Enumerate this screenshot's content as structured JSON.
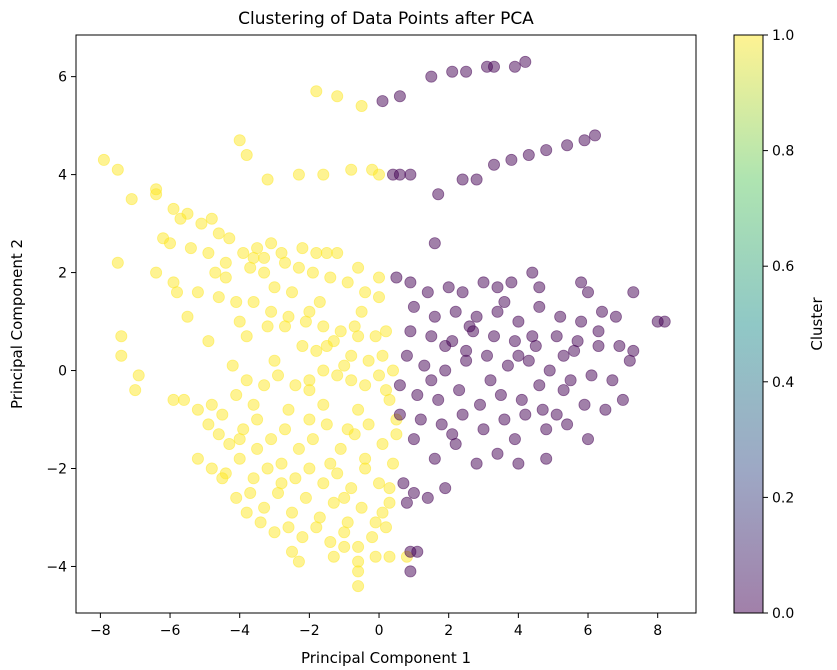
{
  "chart_data": {
    "type": "scatter",
    "title": "Clustering of Data Points after PCA",
    "xlabel": "Principal Component 1",
    "ylabel": "Principal Component 2",
    "xlim": [
      -8.7,
      9.1
    ],
    "ylim": [
      -4.95,
      6.85
    ],
    "xticks": [
      -8,
      -6,
      -4,
      -2,
      0,
      2,
      4,
      6,
      8
    ],
    "yticks": [
      -4,
      -2,
      0,
      2,
      4,
      6
    ],
    "grid": false,
    "marker_alpha": 0.5,
    "colorbar": {
      "label": "Cluster",
      "range": [
        0.0,
        1.0
      ],
      "ticks": [
        "0.0",
        "0.2",
        "0.4",
        "0.6",
        "0.8",
        "1.0"
      ],
      "colormap": "viridis",
      "colormap_stops": [
        "#440154",
        "#3b528b",
        "#21918c",
        "#5ec962",
        "#fde725"
      ]
    },
    "series": [
      {
        "cluster": 1,
        "color": "#fde725",
        "points": [
          [
            -7.9,
            4.3
          ],
          [
            -7.5,
            4.1
          ],
          [
            -7.1,
            3.5
          ],
          [
            -6.4,
            3.7
          ],
          [
            -6.4,
            3.6
          ],
          [
            -5.5,
            3.2
          ],
          [
            -5.1,
            3.0
          ],
          [
            -4.8,
            3.1
          ],
          [
            -4.6,
            2.8
          ],
          [
            -4.3,
            2.7
          ],
          [
            -3.9,
            2.4
          ],
          [
            -3.5,
            2.5
          ],
          [
            -3.1,
            2.6
          ],
          [
            -2.8,
            2.4
          ],
          [
            -2.2,
            2.5
          ],
          [
            -1.8,
            2.4
          ],
          [
            -1.5,
            2.4
          ],
          [
            -1.2,
            2.4
          ],
          [
            -0.6,
            2.1
          ],
          [
            0.0,
            1.9
          ],
          [
            -4.0,
            4.7
          ],
          [
            -3.8,
            4.4
          ],
          [
            -1.8,
            5.7
          ],
          [
            -1.2,
            5.6
          ],
          [
            -0.5,
            5.4
          ],
          [
            -3.2,
            3.9
          ],
          [
            -2.3,
            4.0
          ],
          [
            -1.6,
            4.0
          ],
          [
            -0.8,
            4.1
          ],
          [
            -0.2,
            4.1
          ],
          [
            0.0,
            4.0
          ],
          [
            -5.9,
            3.3
          ],
          [
            -5.7,
            3.1
          ],
          [
            -6.2,
            2.7
          ],
          [
            -6.0,
            2.6
          ],
          [
            -5.4,
            2.5
          ],
          [
            -4.9,
            2.4
          ],
          [
            -4.4,
            2.2
          ],
          [
            -3.7,
            2.1
          ],
          [
            -3.3,
            2.0
          ],
          [
            -2.7,
            2.2
          ],
          [
            -2.3,
            2.1
          ],
          [
            -1.9,
            2.0
          ],
          [
            -1.4,
            1.9
          ],
          [
            -0.9,
            1.8
          ],
          [
            -0.4,
            1.6
          ],
          [
            0.0,
            1.5
          ],
          [
            -7.5,
            2.2
          ],
          [
            -6.4,
            2.0
          ],
          [
            -5.9,
            1.8
          ],
          [
            -5.2,
            1.6
          ],
          [
            -4.6,
            1.5
          ],
          [
            -4.1,
            1.4
          ],
          [
            -3.6,
            1.4
          ],
          [
            -3.1,
            1.2
          ],
          [
            -2.6,
            1.1
          ],
          [
            -2.1,
            1.0
          ],
          [
            -1.6,
            0.9
          ],
          [
            -1.1,
            0.8
          ],
          [
            -0.6,
            0.7
          ],
          [
            -0.1,
            0.7
          ],
          [
            0.2,
            0.8
          ],
          [
            -5.8,
            1.6
          ],
          [
            -5.5,
            1.1
          ],
          [
            -4.9,
            0.6
          ],
          [
            -4.0,
            1.0
          ],
          [
            -3.2,
            0.9
          ],
          [
            -2.7,
            0.9
          ],
          [
            -2.2,
            0.5
          ],
          [
            -1.8,
            0.4
          ],
          [
            -1.3,
            0.6
          ],
          [
            -0.8,
            0.3
          ],
          [
            -0.3,
            0.2
          ],
          [
            0.1,
            0.3
          ],
          [
            -7.4,
            0.7
          ],
          [
            -7.4,
            0.3
          ],
          [
            -7.0,
            -0.4
          ],
          [
            -6.9,
            -0.1
          ],
          [
            -5.9,
            -0.6
          ],
          [
            -5.6,
            -0.6
          ],
          [
            -5.2,
            -0.8
          ],
          [
            -4.8,
            -0.7
          ],
          [
            -4.5,
            -0.9
          ],
          [
            -4.1,
            -0.5
          ],
          [
            -3.8,
            -0.2
          ],
          [
            -3.3,
            -0.3
          ],
          [
            -2.9,
            -0.1
          ],
          [
            -2.4,
            -0.3
          ],
          [
            -2.0,
            -0.2
          ],
          [
            -1.6,
            0.0
          ],
          [
            -1.2,
            -0.1
          ],
          [
            -0.8,
            -0.2
          ],
          [
            -0.4,
            -0.3
          ],
          [
            0.0,
            -0.1
          ],
          [
            0.4,
            0.0
          ],
          [
            -4.9,
            -1.1
          ],
          [
            -4.6,
            -1.3
          ],
          [
            -4.3,
            -1.5
          ],
          [
            -3.9,
            -1.2
          ],
          [
            -3.5,
            -1.6
          ],
          [
            -3.1,
            -1.4
          ],
          [
            -2.7,
            -1.2
          ],
          [
            -2.3,
            -1.6
          ],
          [
            -1.9,
            -1.4
          ],
          [
            -1.5,
            -1.1
          ],
          [
            -1.1,
            -1.6
          ],
          [
            -0.7,
            -1.3
          ],
          [
            -0.3,
            -1.1
          ],
          [
            0.1,
            -1.5
          ],
          [
            0.5,
            -1.0
          ],
          [
            -5.2,
            -1.8
          ],
          [
            -4.8,
            -2.0
          ],
          [
            -4.4,
            -2.1
          ],
          [
            -4.0,
            -1.8
          ],
          [
            -3.6,
            -2.2
          ],
          [
            -3.2,
            -2.0
          ],
          [
            -2.8,
            -1.9
          ],
          [
            -2.4,
            -2.2
          ],
          [
            -2.0,
            -2.0
          ],
          [
            -1.6,
            -2.3
          ],
          [
            -1.2,
            -2.1
          ],
          [
            -0.8,
            -2.4
          ],
          [
            -0.4,
            -2.0
          ],
          [
            0.0,
            -2.3
          ],
          [
            0.4,
            -1.9
          ],
          [
            -4.5,
            -2.2
          ],
          [
            -4.1,
            -2.6
          ],
          [
            -3.7,
            -2.5
          ],
          [
            -3.3,
            -2.8
          ],
          [
            -2.9,
            -2.5
          ],
          [
            -2.5,
            -2.9
          ],
          [
            -2.1,
            -2.6
          ],
          [
            -1.7,
            -3.0
          ],
          [
            -1.3,
            -2.7
          ],
          [
            -0.9,
            -3.1
          ],
          [
            -0.5,
            -2.8
          ],
          [
            -0.1,
            -3.1
          ],
          [
            0.3,
            -2.7
          ],
          [
            -3.8,
            -2.9
          ],
          [
            -3.4,
            -3.1
          ],
          [
            -3.0,
            -3.3
          ],
          [
            -2.6,
            -3.2
          ],
          [
            -2.2,
            -3.4
          ],
          [
            -1.8,
            -3.2
          ],
          [
            -1.4,
            -3.5
          ],
          [
            -1.0,
            -3.3
          ],
          [
            -0.6,
            -3.6
          ],
          [
            -0.2,
            -3.4
          ],
          [
            0.2,
            -3.2
          ],
          [
            -2.3,
            -3.9
          ],
          [
            -1.3,
            -3.8
          ],
          [
            -0.6,
            -3.9
          ],
          [
            -0.6,
            -4.1
          ],
          [
            -0.6,
            -4.4
          ],
          [
            -0.1,
            -3.8
          ],
          [
            0.3,
            -3.8
          ],
          [
            0.8,
            -3.8
          ],
          [
            -3.6,
            -0.7
          ],
          [
            -2.6,
            -0.8
          ],
          [
            -1.6,
            -0.7
          ],
          [
            -0.6,
            -0.8
          ],
          [
            0.3,
            -0.6
          ],
          [
            -4.2,
            0.1
          ],
          [
            -3.0,
            0.2
          ],
          [
            -2.0,
            -0.4
          ],
          [
            -1.0,
            0.1
          ],
          [
            0.2,
            -0.4
          ],
          [
            -4.4,
            1.9
          ],
          [
            -3.0,
            1.7
          ],
          [
            -1.7,
            1.4
          ],
          [
            -0.5,
            1.2
          ],
          [
            -2.5,
            1.6
          ],
          [
            -3.8,
            0.7
          ],
          [
            -1.4,
            -1.9
          ],
          [
            -2.8,
            -2.3
          ],
          [
            0.3,
            -2.4
          ],
          [
            -1.0,
            -2.6
          ],
          [
            -3.5,
            -1.0
          ],
          [
            -0.9,
            -1.2
          ],
          [
            0.5,
            -1.3
          ],
          [
            -2.0,
            -1.0
          ],
          [
            -4.0,
            -1.4
          ],
          [
            -1.5,
            0.5
          ],
          [
            -0.4,
            -1.8
          ],
          [
            -3.3,
            2.3
          ],
          [
            -2.0,
            1.2
          ],
          [
            -0.7,
            0.9
          ],
          [
            -4.7,
            2.0
          ],
          [
            -3.6,
            2.3
          ],
          [
            -1.0,
            -3.6
          ],
          [
            -2.5,
            -3.7
          ],
          [
            0.1,
            -2.9
          ]
        ]
      },
      {
        "cluster": 0,
        "color": "#440154",
        "points": [
          [
            0.1,
            5.5
          ],
          [
            0.6,
            5.6
          ],
          [
            1.5,
            6.0
          ],
          [
            2.1,
            6.1
          ],
          [
            2.5,
            6.1
          ],
          [
            3.1,
            6.2
          ],
          [
            3.3,
            6.2
          ],
          [
            3.9,
            6.2
          ],
          [
            4.2,
            6.3
          ],
          [
            0.4,
            4.0
          ],
          [
            0.6,
            4.0
          ],
          [
            0.9,
            4.0
          ],
          [
            1.7,
            3.6
          ],
          [
            1.6,
            2.6
          ],
          [
            2.4,
            3.9
          ],
          [
            2.8,
            3.9
          ],
          [
            3.3,
            4.2
          ],
          [
            3.8,
            4.3
          ],
          [
            4.3,
            4.4
          ],
          [
            4.8,
            4.5
          ],
          [
            5.4,
            4.6
          ],
          [
            5.9,
            4.7
          ],
          [
            6.2,
            4.8
          ],
          [
            0.5,
            1.9
          ],
          [
            0.9,
            1.8
          ],
          [
            1.4,
            1.6
          ],
          [
            2.0,
            1.7
          ],
          [
            2.4,
            1.6
          ],
          [
            3.0,
            1.8
          ],
          [
            3.4,
            1.7
          ],
          [
            3.8,
            1.8
          ],
          [
            4.4,
            2.0
          ],
          [
            4.6,
            1.7
          ],
          [
            5.8,
            1.8
          ],
          [
            6.0,
            1.6
          ],
          [
            1.0,
            1.3
          ],
          [
            1.6,
            1.1
          ],
          [
            2.2,
            1.2
          ],
          [
            2.8,
            1.1
          ],
          [
            3.4,
            1.2
          ],
          [
            4.0,
            1.0
          ],
          [
            4.6,
            1.3
          ],
          [
            5.2,
            1.1
          ],
          [
            5.8,
            1.0
          ],
          [
            6.4,
            1.2
          ],
          [
            6.8,
            1.1
          ],
          [
            7.3,
            1.6
          ],
          [
            8.0,
            1.0
          ],
          [
            8.2,
            1.0
          ],
          [
            0.9,
            0.8
          ],
          [
            1.5,
            0.7
          ],
          [
            2.1,
            0.6
          ],
          [
            2.7,
            0.8
          ],
          [
            3.3,
            0.7
          ],
          [
            3.9,
            0.6
          ],
          [
            4.5,
            0.5
          ],
          [
            5.1,
            0.7
          ],
          [
            5.7,
            0.6
          ],
          [
            6.3,
            0.5
          ],
          [
            6.9,
            0.5
          ],
          [
            7.3,
            0.4
          ],
          [
            0.8,
            0.3
          ],
          [
            1.3,
            0.1
          ],
          [
            1.9,
            0.0
          ],
          [
            2.5,
            0.2
          ],
          [
            3.1,
            0.3
          ],
          [
            3.7,
            0.1
          ],
          [
            4.3,
            0.2
          ],
          [
            4.9,
            0.0
          ],
          [
            5.5,
            -0.2
          ],
          [
            6.1,
            -0.1
          ],
          [
            6.7,
            -0.2
          ],
          [
            7.2,
            0.2
          ],
          [
            0.6,
            -0.3
          ],
          [
            1.1,
            -0.5
          ],
          [
            1.7,
            -0.6
          ],
          [
            2.3,
            -0.4
          ],
          [
            2.9,
            -0.7
          ],
          [
            3.5,
            -0.5
          ],
          [
            4.1,
            -0.6
          ],
          [
            4.7,
            -0.8
          ],
          [
            5.3,
            -0.4
          ],
          [
            5.9,
            -0.7
          ],
          [
            6.5,
            -0.8
          ],
          [
            7.0,
            -0.6
          ],
          [
            0.6,
            -0.9
          ],
          [
            1.2,
            -1.0
          ],
          [
            1.8,
            -1.1
          ],
          [
            2.4,
            -0.9
          ],
          [
            3.0,
            -1.2
          ],
          [
            3.6,
            -1.0
          ],
          [
            4.2,
            -0.9
          ],
          [
            4.8,
            -1.2
          ],
          [
            5.4,
            -1.1
          ],
          [
            6.0,
            -1.4
          ],
          [
            1.0,
            -1.4
          ],
          [
            1.6,
            -1.8
          ],
          [
            2.2,
            -1.5
          ],
          [
            2.8,
            -1.9
          ],
          [
            3.4,
            -1.7
          ],
          [
            4.0,
            -1.9
          ],
          [
            4.8,
            -1.8
          ],
          [
            0.7,
            -2.3
          ],
          [
            1.0,
            -2.5
          ],
          [
            1.4,
            -2.6
          ],
          [
            1.9,
            -2.4
          ],
          [
            0.8,
            -2.7
          ],
          [
            0.9,
            -3.7
          ],
          [
            1.1,
            -3.7
          ],
          [
            0.9,
            -4.1
          ],
          [
            2.5,
            0.4
          ],
          [
            3.2,
            -0.2
          ],
          [
            4.0,
            0.3
          ],
          [
            4.6,
            -0.3
          ],
          [
            5.3,
            0.3
          ],
          [
            1.5,
            -0.2
          ],
          [
            2.1,
            -1.3
          ],
          [
            3.9,
            -1.4
          ],
          [
            5.1,
            -0.9
          ],
          [
            1.9,
            0.5
          ],
          [
            6.3,
            0.8
          ],
          [
            3.6,
            1.4
          ],
          [
            2.6,
            0.9
          ],
          [
            4.4,
            0.7
          ],
          [
            5.6,
            0.4
          ]
        ]
      }
    ]
  }
}
